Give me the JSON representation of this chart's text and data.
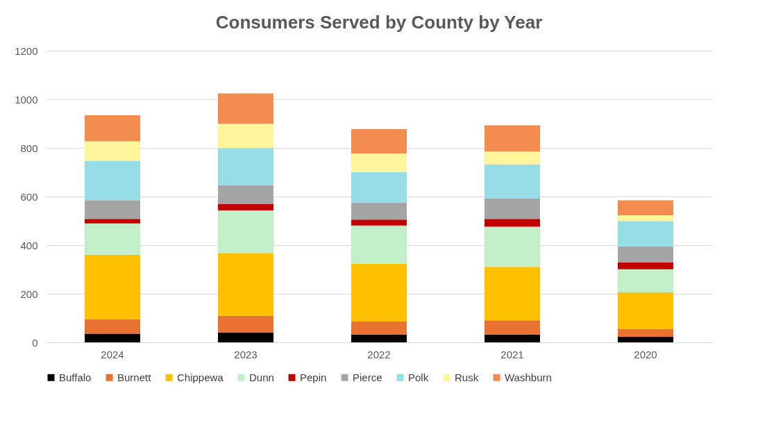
{
  "chart_data": {
    "type": "bar",
    "title": "Consumers Served by County by Year",
    "stacked": true,
    "categories": [
      "2024",
      "2023",
      "2022",
      "2021",
      "2020"
    ],
    "series": [
      {
        "name": "Buffalo",
        "color": "#000000",
        "values": [
          36,
          41,
          32,
          32,
          23
        ]
      },
      {
        "name": "Burnett",
        "color": "#e97132",
        "values": [
          59,
          68,
          54,
          59,
          32
        ]
      },
      {
        "name": "Chippewa",
        "color": "#ffc000",
        "values": [
          265,
          259,
          238,
          220,
          151
        ]
      },
      {
        "name": "Dunn",
        "color": "#c1f0c8",
        "values": [
          129,
          175,
          157,
          165,
          95
        ]
      },
      {
        "name": "Pepin",
        "color": "#c00000",
        "values": [
          19,
          27,
          24,
          32,
          28
        ]
      },
      {
        "name": "Pierce",
        "color": "#a5a5a5",
        "values": [
          77,
          77,
          70,
          85,
          66
        ]
      },
      {
        "name": "Polk",
        "color": "#97dde7",
        "values": [
          162,
          152,
          126,
          139,
          104
        ]
      },
      {
        "name": "Rusk",
        "color": "#fff59b",
        "values": [
          80,
          100,
          76,
          53,
          24
        ]
      },
      {
        "name": "Washburn",
        "color": "#f28c4f",
        "values": [
          107,
          125,
          100,
          108,
          61
        ]
      }
    ],
    "ylim": [
      0,
      1200
    ],
    "yticks": [
      0,
      200,
      400,
      600,
      800,
      1000,
      1200
    ],
    "grid": "y",
    "legend": "bottom"
  }
}
